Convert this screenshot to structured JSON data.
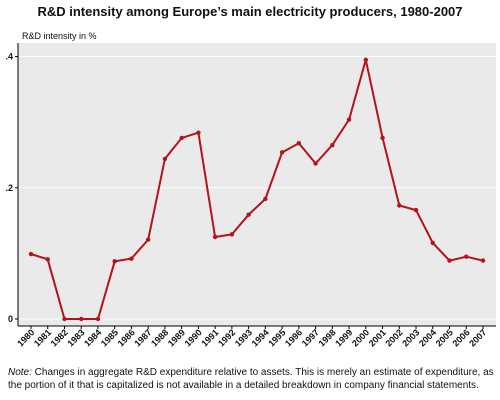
{
  "chart_data": {
    "type": "line",
    "title": "R&D intensity among Europe’s main electricity producers, 1980-2007",
    "ylabel": "R&D intensity in %",
    "xlabel": "",
    "x": [
      "1980",
      "1981",
      "1982",
      "1983",
      "1984",
      "1985",
      "1986",
      "1987",
      "1988",
      "1989",
      "1990",
      "1991",
      "1992",
      "1993",
      "1994",
      "1995",
      "1996",
      "1997",
      "1998",
      "1999",
      "2000",
      "2001",
      "2002",
      "2003",
      "2004",
      "2005",
      "2006",
      "2007"
    ],
    "series": [
      {
        "name": "",
        "values": [
          0.099,
          0.091,
          0.0,
          0.0,
          0.0,
          0.088,
          0.092,
          0.121,
          0.244,
          0.276,
          0.284,
          0.125,
          0.129,
          0.159,
          0.183,
          0.254,
          0.268,
          0.237,
          0.265,
          0.304,
          0.395,
          0.276,
          0.173,
          0.166,
          0.116,
          0.089,
          0.095,
          0.089
        ],
        "color": "#b5121b"
      }
    ],
    "yticks": [
      0,
      0.2,
      0.4
    ],
    "ytick_labels": [
      "0",
      ".2",
      ".4"
    ],
    "ylim": [
      0,
      0.41
    ],
    "grid": true,
    "legend": "none",
    "background": "#eaeaea",
    "grid_color": "#ffffff"
  },
  "note": {
    "prefix": "Note:",
    "text": " Changes in aggregate R&D expenditure relative to assets. This is merely an estimate of expenditure, as the portion of it that is capitalized is not available in a detailed breakdown in company financial statements."
  }
}
